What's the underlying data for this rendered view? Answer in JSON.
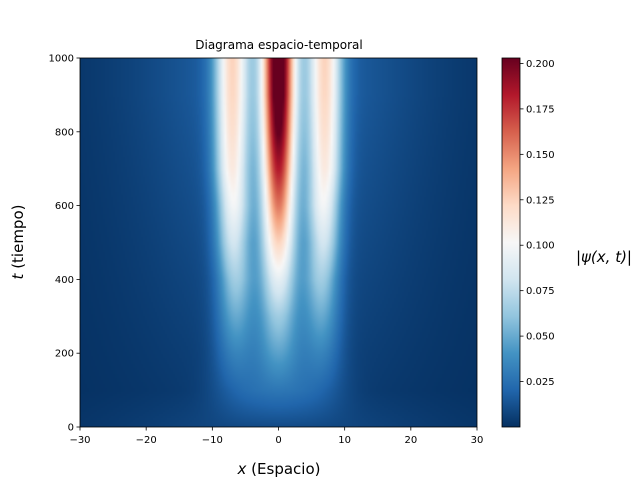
{
  "chart_data": {
    "type": "heatmap",
    "title": "Diagrama espacio-temporal",
    "xlabel": {
      "var": "x",
      "rest": " (Espacio)"
    },
    "ylabel": {
      "var": "t",
      "rest": " (tiempo)"
    },
    "colorbar_label": "|ψ(x, t)|",
    "colormap": "RdBu_r",
    "colormap_stops": [
      "#053061",
      "#2166ac",
      "#4393c3",
      "#92c5de",
      "#d1e5f0",
      "#f7f7f7",
      "#fddbc7",
      "#f4a582",
      "#d6604d",
      "#b2182b",
      "#67001f"
    ],
    "xlim": [
      -30,
      30
    ],
    "ylim": [
      0,
      1000
    ],
    "xticks": [
      -30,
      -20,
      -10,
      0,
      10,
      20,
      30
    ],
    "xtick_labels": [
      "−30",
      "−20",
      "−10",
      "0",
      "10",
      "20",
      "30"
    ],
    "yticks": [
      0,
      200,
      400,
      600,
      800,
      1000
    ],
    "ytick_labels": [
      "0",
      "200",
      "400",
      "600",
      "800",
      "1000"
    ],
    "clim": [
      0.0,
      0.203
    ],
    "cbar_ticks": [
      0.025,
      0.05,
      0.075,
      0.1,
      0.125,
      0.15,
      0.175,
      0.2
    ],
    "cbar_tick_labels": [
      "0.025",
      "0.050",
      "0.075",
      "0.100",
      "0.125",
      "0.150",
      "0.175",
      "0.200"
    ],
    "profiles": [
      {
        "t": 0,
        "peaks": [
          {
            "x": 0,
            "amp": 0.005,
            "w": 20
          }
        ],
        "base": 0.005
      },
      {
        "t": 100,
        "peaks": [
          {
            "x": 0,
            "amp": 0.02,
            "w": 4
          },
          {
            "x": -6.5,
            "amp": 0.01,
            "w": 3
          },
          {
            "x": 6.5,
            "amp": 0.01,
            "w": 3
          }
        ],
        "base": 0.006
      },
      {
        "t": 200,
        "peaks": [
          {
            "x": 0,
            "amp": 0.038,
            "w": 2.5
          },
          {
            "x": -6.5,
            "amp": 0.025,
            "w": 2.2
          },
          {
            "x": 6.5,
            "amp": 0.025,
            "w": 2.2
          }
        ],
        "base": 0.008
      },
      {
        "t": 300,
        "peaks": [
          {
            "x": 0,
            "amp": 0.055,
            "w": 2.2
          },
          {
            "x": -6.5,
            "amp": 0.04,
            "w": 2.0
          },
          {
            "x": 6.5,
            "amp": 0.04,
            "w": 2.0
          }
        ],
        "base": 0.01
      },
      {
        "t": 400,
        "peaks": [
          {
            "x": 0,
            "amp": 0.08,
            "w": 2.0
          },
          {
            "x": -6.5,
            "amp": 0.055,
            "w": 1.9
          },
          {
            "x": 6.5,
            "amp": 0.055,
            "w": 1.9
          }
        ],
        "base": 0.012
      },
      {
        "t": 500,
        "peaks": [
          {
            "x": 0,
            "amp": 0.11,
            "w": 1.9
          },
          {
            "x": -6.8,
            "amp": 0.07,
            "w": 1.8
          },
          {
            "x": 6.8,
            "amp": 0.07,
            "w": 1.8
          }
        ],
        "base": 0.014
      },
      {
        "t": 600,
        "peaks": [
          {
            "x": 0,
            "amp": 0.14,
            "w": 1.8
          },
          {
            "x": -6.8,
            "amp": 0.085,
            "w": 1.8
          },
          {
            "x": 6.8,
            "amp": 0.085,
            "w": 1.8
          }
        ],
        "base": 0.016
      },
      {
        "t": 700,
        "peaks": [
          {
            "x": 0,
            "amp": 0.165,
            "w": 1.8
          },
          {
            "x": -7,
            "amp": 0.095,
            "w": 1.8
          },
          {
            "x": 7,
            "amp": 0.095,
            "w": 1.8
          }
        ],
        "base": 0.018
      },
      {
        "t": 800,
        "peaks": [
          {
            "x": 0,
            "amp": 0.185,
            "w": 1.8
          },
          {
            "x": -7,
            "amp": 0.1,
            "w": 1.8
          },
          {
            "x": 7,
            "amp": 0.1,
            "w": 1.8
          }
        ],
        "base": 0.02
      },
      {
        "t": 900,
        "peaks": [
          {
            "x": 0,
            "amp": 0.198,
            "w": 1.8
          },
          {
            "x": -7,
            "amp": 0.103,
            "w": 1.8
          },
          {
            "x": 7,
            "amp": 0.103,
            "w": 1.8
          }
        ],
        "base": 0.022
      },
      {
        "t": 1000,
        "peaks": [
          {
            "x": 0,
            "amp": 0.203,
            "w": 1.8
          },
          {
            "x": -7,
            "amp": 0.105,
            "w": 1.8
          },
          {
            "x": 7,
            "amp": 0.105,
            "w": 1.8
          }
        ],
        "base": 0.022
      }
    ]
  }
}
